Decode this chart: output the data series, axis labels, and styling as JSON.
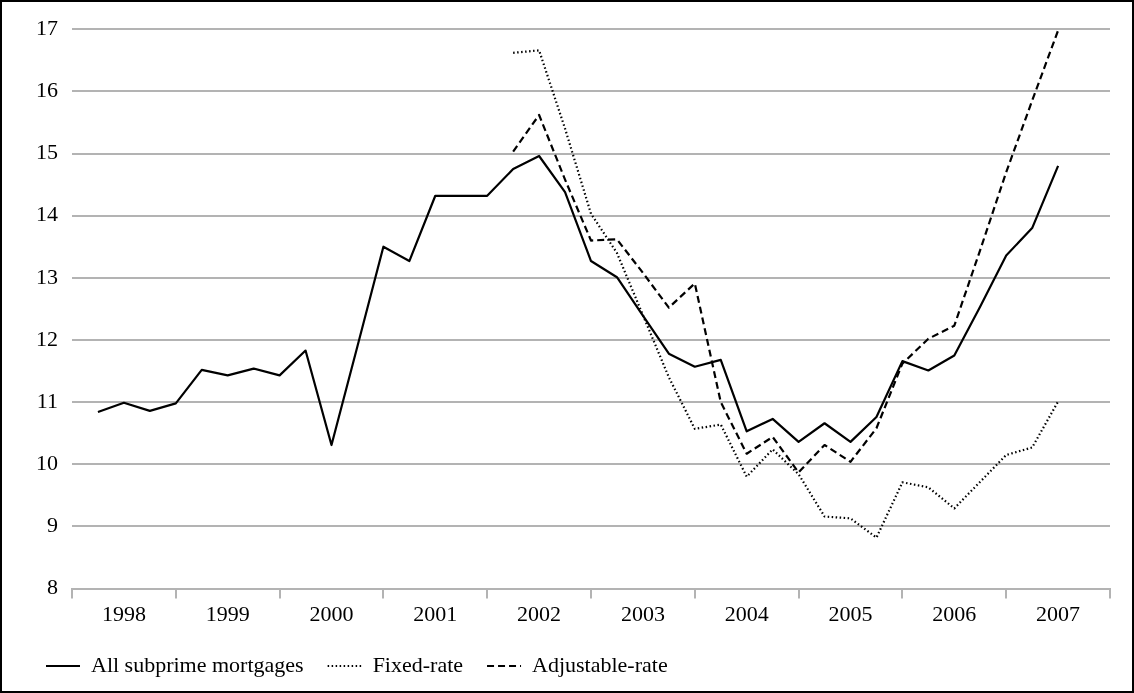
{
  "chart_data": {
    "type": "line",
    "x": [
      1998.25,
      1998.5,
      1998.75,
      1999,
      1999.25,
      1999.5,
      1999.75,
      2000,
      2000.25,
      2000.5,
      2000.75,
      2001,
      2001.25,
      2001.5,
      2001.75,
      2002,
      2002.25,
      2002.5,
      2002.75,
      2003,
      2003.25,
      2003.5,
      2003.75,
      2004,
      2004.25,
      2004.5,
      2004.75,
      2005,
      2005.25,
      2005.5,
      2005.75,
      2006,
      2006.25,
      2006.5,
      2006.75,
      2007,
      2007.25,
      2007.5
    ],
    "series": [
      {
        "name": "All subprime mortgages",
        "color": "#000000",
        "line_style": "solid",
        "values": [
          10.84,
          10.99,
          10.86,
          10.98,
          11.52,
          11.43,
          11.54,
          11.43,
          11.83,
          10.31,
          11.9,
          13.5,
          13.27,
          14.32,
          14.32,
          14.32,
          14.75,
          14.96,
          14.38,
          13.27,
          13.01,
          12.39,
          11.78,
          11.57,
          11.68,
          10.53,
          10.73,
          10.36,
          10.66,
          10.36,
          10.76,
          11.66,
          11.51,
          11.75,
          12.54,
          13.36,
          13.8,
          14.8
        ]
      },
      {
        "name": "Fixed-rate",
        "color": "#000000",
        "line_style": "dotted",
        "values": [
          null,
          null,
          null,
          null,
          null,
          null,
          null,
          null,
          null,
          null,
          null,
          null,
          null,
          null,
          null,
          null,
          16.62,
          16.66,
          15.4,
          14.03,
          13.4,
          12.4,
          11.4,
          10.57,
          10.64,
          9.8,
          10.24,
          9.84,
          9.16,
          9.13,
          8.82,
          9.71,
          9.63,
          9.29,
          9.72,
          10.15,
          10.27,
          11.01
        ]
      },
      {
        "name": "Adjustable-rate",
        "color": "#000000",
        "line_style": "dashed",
        "values": [
          null,
          null,
          null,
          null,
          null,
          null,
          null,
          null,
          null,
          null,
          null,
          null,
          null,
          null,
          null,
          null,
          15.03,
          15.62,
          14.58,
          13.6,
          13.62,
          13.08,
          12.52,
          12.91,
          11,
          10.17,
          10.44,
          9.87,
          10.31,
          10.04,
          10.58,
          11.62,
          12.02,
          12.23,
          13.45,
          14.7,
          15.85,
          16.98
        ]
      }
    ],
    "xlim": [
      1998,
      2008
    ],
    "xticks": [
      {
        "value": 1998,
        "label": null
      },
      {
        "value": 1998.5,
        "label": "1998"
      },
      {
        "value": 1999,
        "label": null
      },
      {
        "value": 1999.5,
        "label": "1999"
      },
      {
        "value": 2000,
        "label": null
      },
      {
        "value": 2000.5,
        "label": "2000"
      },
      {
        "value": 2001,
        "label": null
      },
      {
        "value": 2001.5,
        "label": "2001"
      },
      {
        "value": 2002,
        "label": null
      },
      {
        "value": 2002.5,
        "label": "2002"
      },
      {
        "value": 2003,
        "label": null
      },
      {
        "value": 2003.5,
        "label": "2003"
      },
      {
        "value": 2004,
        "label": null
      },
      {
        "value": 2004.5,
        "label": "2004"
      },
      {
        "value": 2005,
        "label": null
      },
      {
        "value": 2005.5,
        "label": "2005"
      },
      {
        "value": 2006,
        "label": null
      },
      {
        "value": 2006.5,
        "label": "2006"
      },
      {
        "value": 2007,
        "label": null
      },
      {
        "value": 2007.5,
        "label": "2007"
      },
      {
        "value": 2008,
        "label": null
      }
    ],
    "ylim": [
      8,
      17
    ],
    "yticks": [
      8,
      9,
      10,
      11,
      12,
      13,
      14,
      15,
      16,
      17
    ],
    "grid": "y",
    "legend": "bottom left",
    "marker": "none"
  }
}
